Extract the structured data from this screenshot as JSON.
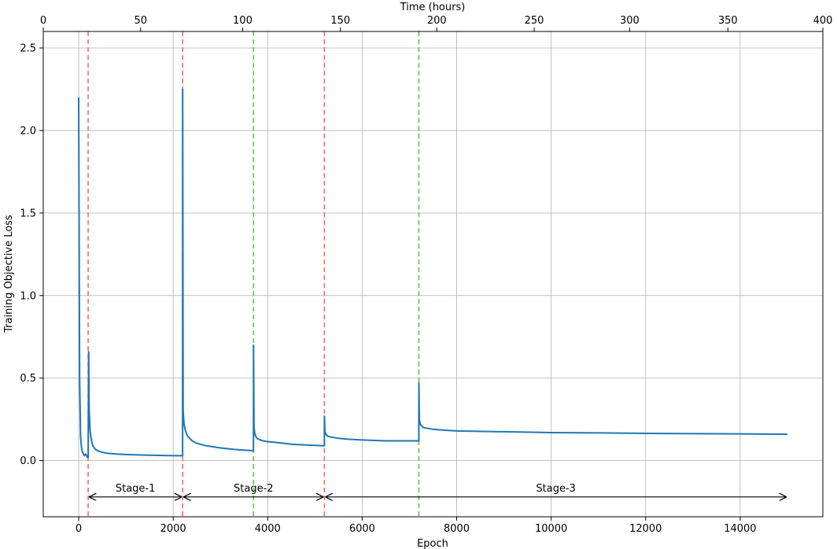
{
  "chart_data": {
    "type": "line",
    "title": "",
    "xlabel": "Epoch",
    "ylabel": "Training Objective Loss",
    "x2label": "Time (hours)",
    "xlim": [
      -750,
      15750
    ],
    "ylim": [
      -0.34,
      2.6
    ],
    "x2lim": [
      0,
      400
    ],
    "grid": true,
    "xticks": [
      0,
      2000,
      4000,
      6000,
      8000,
      10000,
      12000,
      14000
    ],
    "yticks": [
      0.0,
      0.5,
      1.0,
      1.5,
      2.0,
      2.5
    ],
    "ytick_labels": [
      "0.0",
      "0.5",
      "1.0",
      "1.5",
      "2.0",
      "2.5"
    ],
    "x2ticks": [
      0,
      50,
      100,
      150,
      200,
      250,
      300,
      350,
      400
    ],
    "x2tick_positions_epoch": [
      -750,
      1310,
      3470,
      5540,
      7580,
      9640,
      11660,
      13740,
      15750
    ],
    "series": [
      {
        "color": "#1f77b4",
        "x": [
          0,
          20,
          40,
          60,
          80,
          100,
          120,
          150,
          180,
          200,
          210,
          220,
          240,
          270,
          300,
          350,
          400,
          500,
          600,
          800,
          1000,
          1200,
          1500,
          1800,
          2100,
          2199,
          2200,
          2210,
          2230,
          2260,
          2300,
          2400,
          2500,
          2700,
          3000,
          3300,
          3699,
          3700,
          3710,
          3730,
          3760,
          3800,
          3900,
          4000,
          4200,
          4500,
          4800,
          5199,
          5200,
          5210,
          5230,
          5260,
          5300,
          5400,
          5500,
          5700,
          6000,
          6500,
          7199,
          7200,
          7210,
          7230,
          7260,
          7300,
          7400,
          7500,
          7700,
          8000,
          9000,
          10000,
          11000,
          12000,
          13000,
          14000,
          15000
        ],
        "y": [
          2.2,
          0.5,
          0.15,
          0.08,
          0.05,
          0.04,
          0.03,
          0.04,
          0.02,
          0.02,
          0.66,
          0.32,
          0.18,
          0.12,
          0.09,
          0.07,
          0.06,
          0.05,
          0.045,
          0.04,
          0.037,
          0.035,
          0.033,
          0.031,
          0.03,
          0.03,
          2.25,
          0.3,
          0.22,
          0.18,
          0.15,
          0.12,
          0.105,
          0.09,
          0.077,
          0.068,
          0.06,
          0.7,
          0.2,
          0.16,
          0.14,
          0.13,
          0.12,
          0.115,
          0.11,
          0.1,
          0.095,
          0.09,
          0.27,
          0.18,
          0.16,
          0.15,
          0.145,
          0.14,
          0.135,
          0.13,
          0.125,
          0.12,
          0.12,
          0.47,
          0.25,
          0.22,
          0.21,
          0.2,
          0.195,
          0.19,
          0.185,
          0.18,
          0.175,
          0.17,
          0.168,
          0.165,
          0.163,
          0.162,
          0.16
        ]
      }
    ],
    "vlines": [
      {
        "x": 200,
        "color": "#ff6666",
        "style": "dashed"
      },
      {
        "x": 2200,
        "color": "#ff6666",
        "style": "dashed"
      },
      {
        "x": 3700,
        "color": "#66bb66",
        "style": "dashed"
      },
      {
        "x": 5200,
        "color": "#ff6666",
        "style": "dashed"
      },
      {
        "x": 7200,
        "color": "#66bb66",
        "style": "dashed"
      }
    ],
    "annotations": [
      {
        "label": "Stage-1",
        "x_start": 200,
        "x_end": 2200,
        "y": -0.22
      },
      {
        "label": "Stage-2",
        "x_start": 2200,
        "x_end": 5200,
        "y": -0.22
      },
      {
        "label": "Stage-3",
        "x_start": 5200,
        "x_end": 15000,
        "y": -0.22
      }
    ]
  }
}
